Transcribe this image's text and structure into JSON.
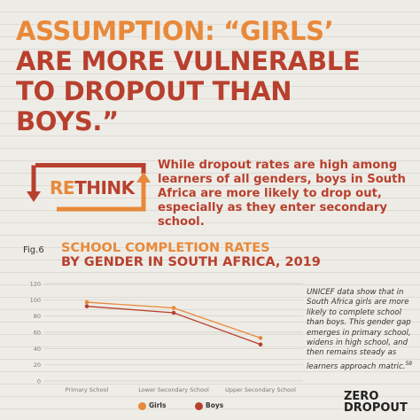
{
  "headline": {
    "line1": "ASSUMPTION: “GIRLS’",
    "line2": "ARE MORE VULNERABLE",
    "line3": "TO DROPOUT THAN",
    "line4": "BOYS.”"
  },
  "rethink": {
    "prefix": "RE",
    "suffix": "THINK",
    "text": "While dropout rates are high among learners of all genders, boys in South Africa are more likely to drop out, especially as they enter secondary school."
  },
  "figure": {
    "label": "Fig.6",
    "title_line1": "SCHOOL COMPLETION RATES",
    "title_line2": "BY GENDER IN SOUTH AFRICA, 2019"
  },
  "note": "UNICEF data show that in South Africa girls are more likely to complete school than boys. This gender gap emerges in primary school, widens in high school, and then remains steady as learners approach matric.",
  "note_ref": "58",
  "legend": {
    "girls": "Girls",
    "boys": "Boys"
  },
  "logo": {
    "line1": "ZERO",
    "line2": "DROPOUT"
  },
  "colors": {
    "girls": "#e8893a",
    "boys": "#b8402e",
    "accent": "#e8893a"
  },
  "chart_data": {
    "type": "line",
    "categories": [
      "Primary School",
      "Lower Secondary School",
      "Upper Secondary School"
    ],
    "series": [
      {
        "name": "Girls",
        "values": [
          97,
          90,
          53
        ]
      },
      {
        "name": "Boys",
        "values": [
          92,
          84,
          45
        ]
      }
    ],
    "ylim": [
      0,
      120
    ],
    "yticks": [
      0,
      20,
      40,
      60,
      80,
      100,
      120
    ],
    "grid": true,
    "legend_position": "bottom"
  }
}
